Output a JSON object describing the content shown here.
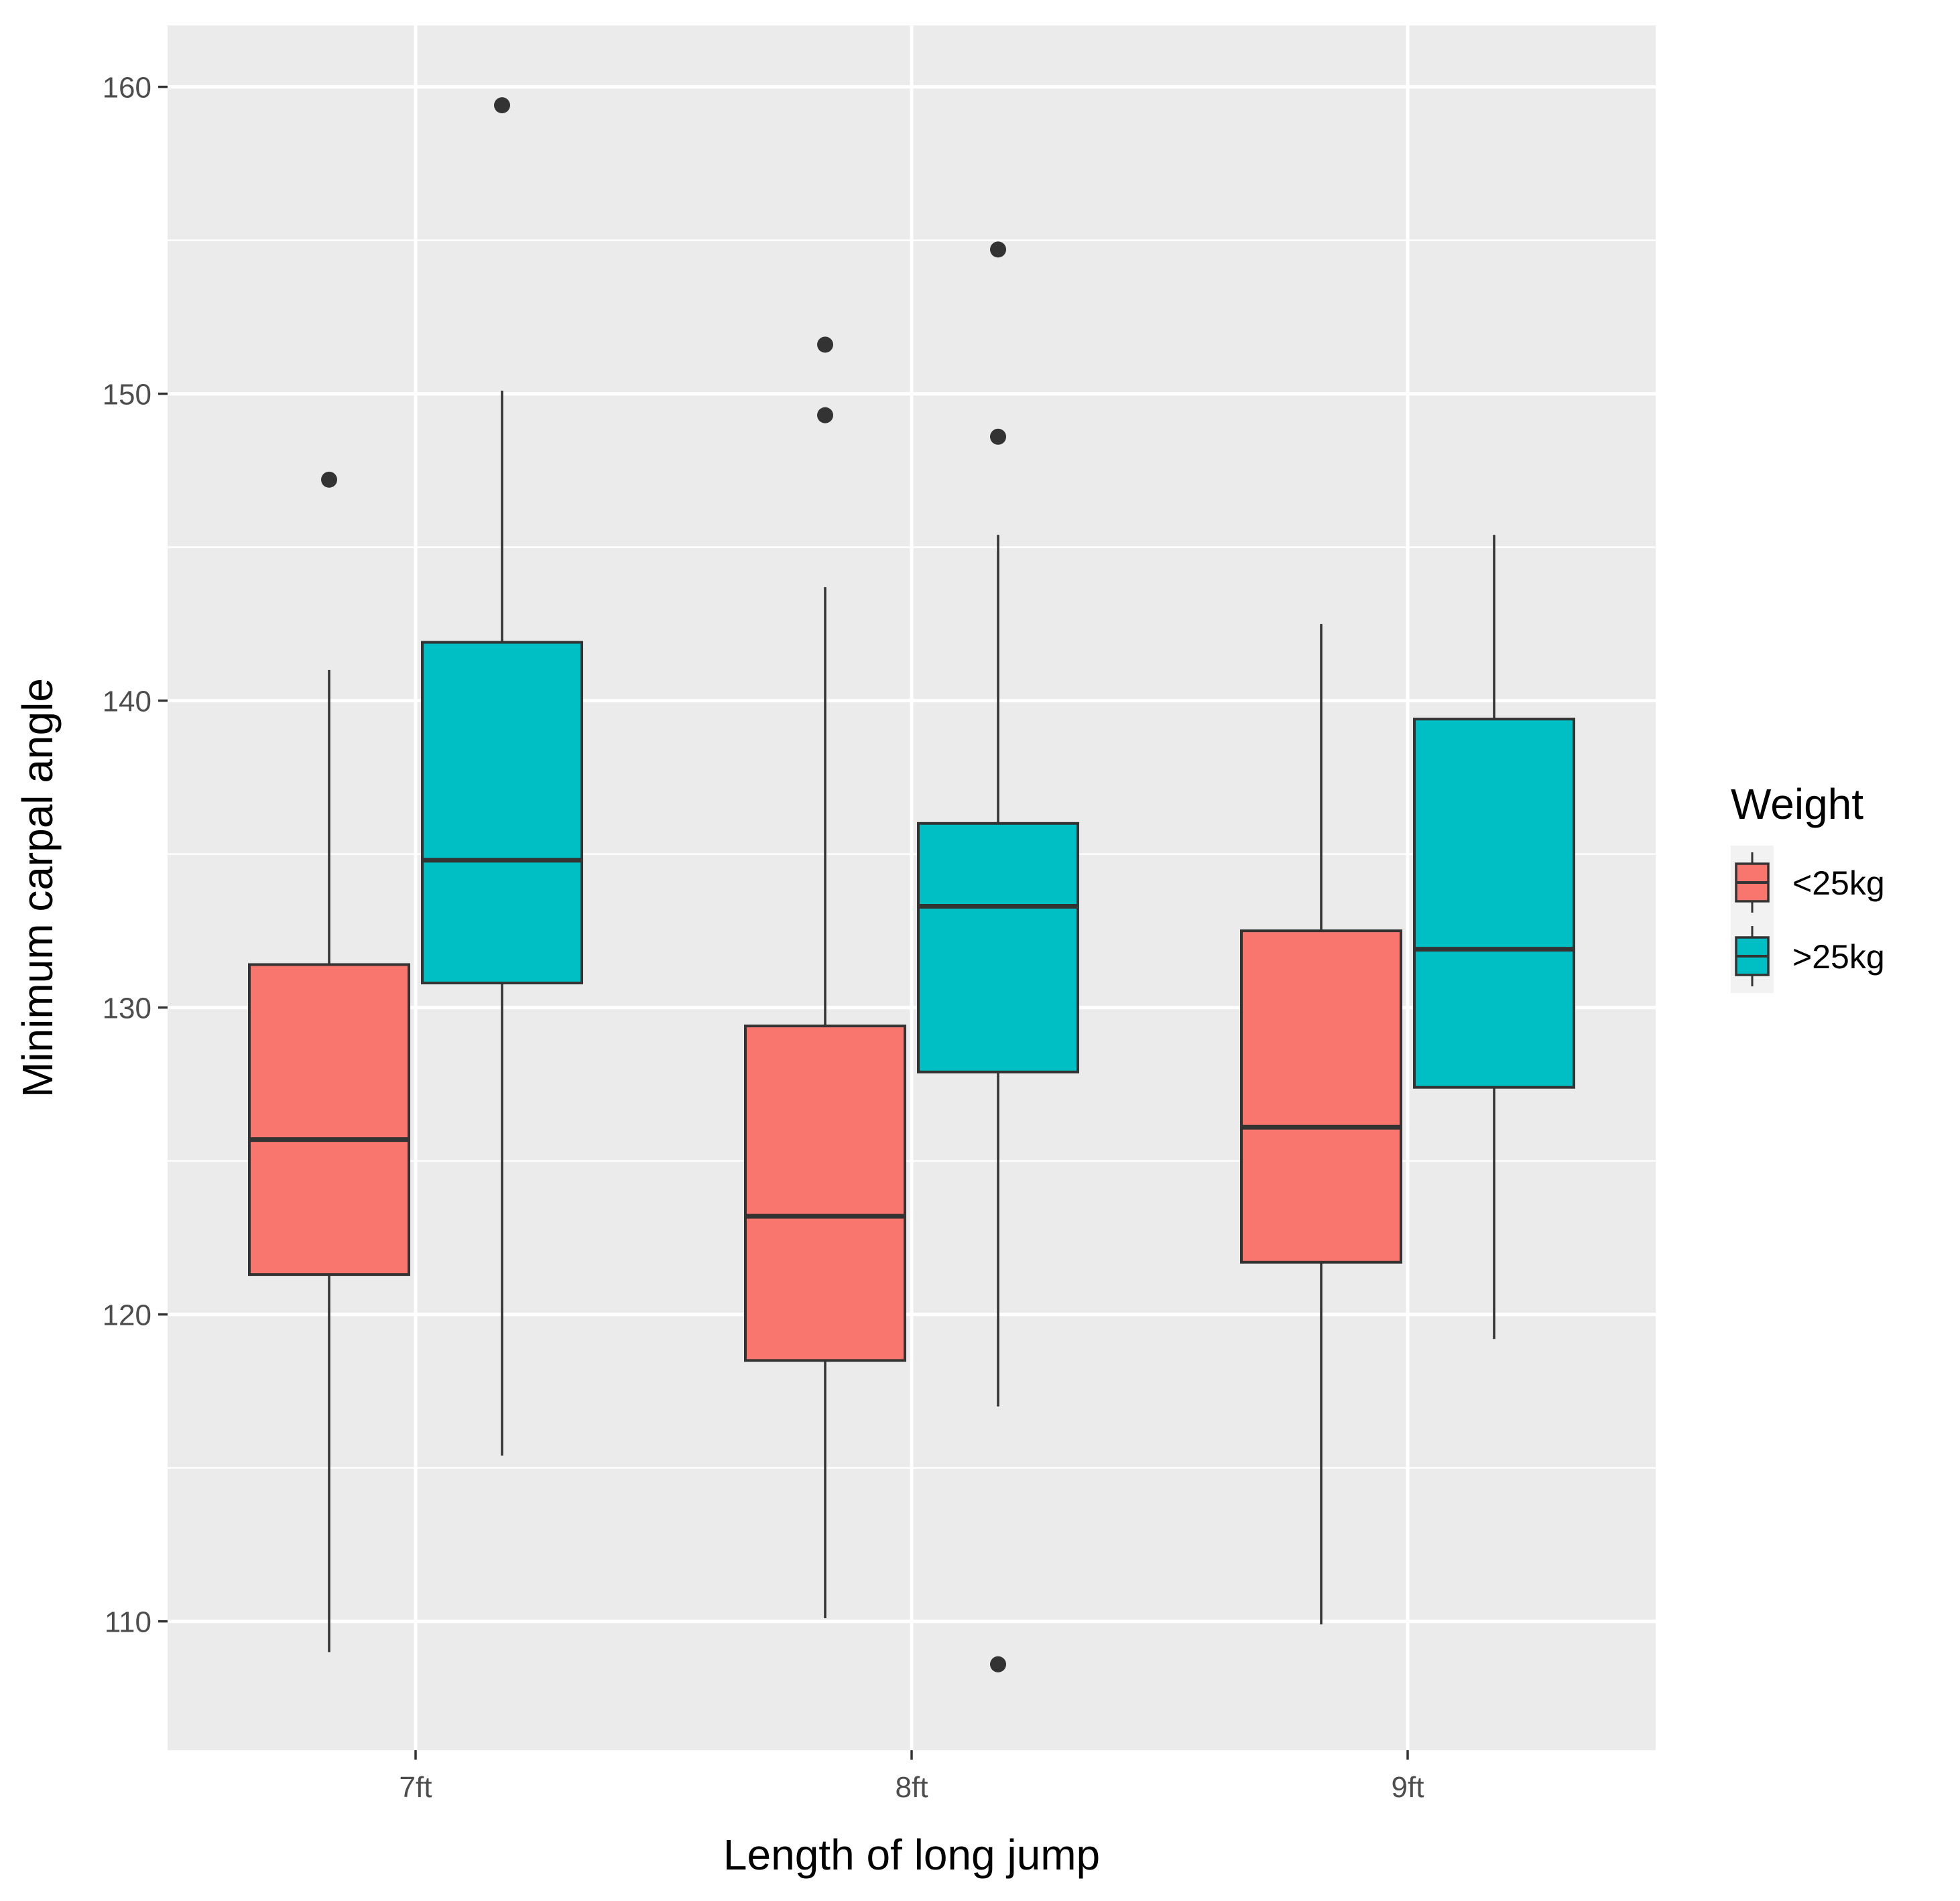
{
  "chart_data": {
    "type": "boxplot",
    "xlabel": "Length of long jump",
    "ylabel": "Minimum carpal angle",
    "categories": [
      "7ft",
      "8ft",
      "9ft"
    ],
    "ylim": [
      105.8,
      162.0
    ],
    "yticks": [
      110,
      120,
      130,
      140,
      150,
      160
    ],
    "ytick_labels": [
      "110",
      "120",
      "130",
      "140",
      "150",
      "160"
    ],
    "grid": true,
    "legend": {
      "title": "Weight",
      "position": "right",
      "entries": [
        "<25kg",
        ">25kg"
      ]
    },
    "series": [
      {
        "name": "<25kg",
        "color": "#F8766D",
        "boxes": [
          {
            "category": "7ft",
            "whisker_low": 109.0,
            "q1": 121.3,
            "median": 125.7,
            "q3": 131.4,
            "whisker_high": 141.0,
            "outliers": [
              147.2
            ]
          },
          {
            "category": "8ft",
            "whisker_low": 110.1,
            "q1": 118.5,
            "median": 123.2,
            "q3": 129.4,
            "whisker_high": 143.7,
            "outliers": [
              149.3,
              151.6
            ]
          },
          {
            "category": "9ft",
            "whisker_low": 109.9,
            "q1": 121.7,
            "median": 126.1,
            "q3": 132.5,
            "whisker_high": 142.5,
            "outliers": []
          }
        ]
      },
      {
        "name": ">25kg",
        "color": "#00BFC4",
        "boxes": [
          {
            "category": "7ft",
            "whisker_low": 115.4,
            "q1": 130.8,
            "median": 134.8,
            "q3": 141.9,
            "whisker_high": 150.1,
            "outliers": [
              159.4
            ]
          },
          {
            "category": "8ft",
            "whisker_low": 117.0,
            "q1": 127.9,
            "median": 133.3,
            "q3": 136.0,
            "whisker_high": 145.4,
            "outliers": [
              154.7,
              148.6,
              108.6
            ]
          },
          {
            "category": "9ft",
            "whisker_low": 119.2,
            "q1": 127.4,
            "median": 131.9,
            "q3": 139.4,
            "whisker_high": 145.4,
            "outliers": []
          }
        ]
      }
    ]
  }
}
